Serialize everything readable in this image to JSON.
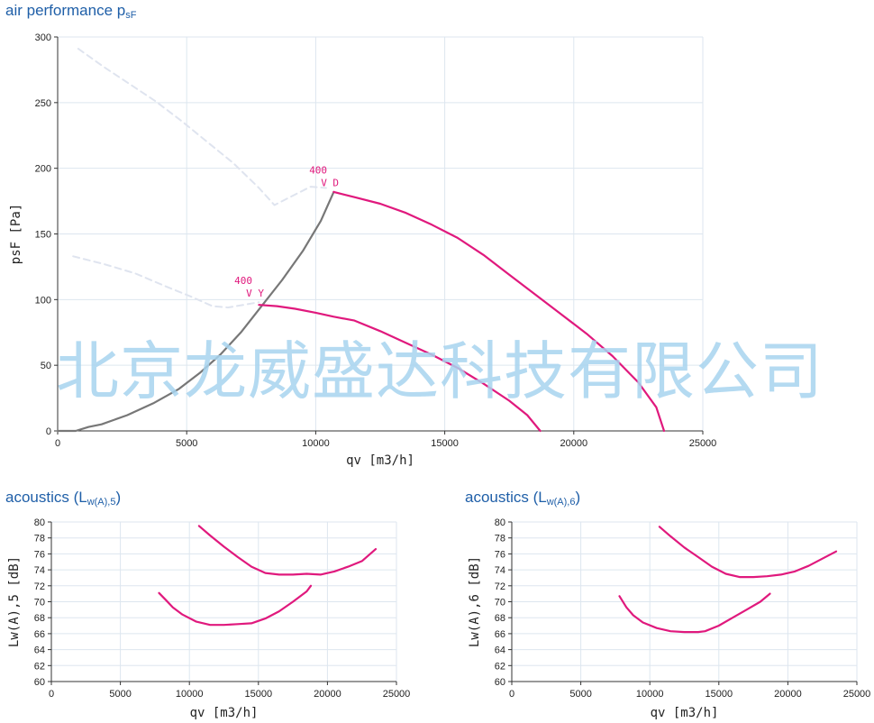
{
  "watermark": "北京龙威盛达科技有限公司",
  "titles": {
    "perf_main": "air performance p",
    "perf_sub": "sF",
    "ac5_main": "acoustics (L",
    "ac5_sub": "w(A),5",
    "ac5_close": ")",
    "ac6_main": "acoustics (L",
    "ac6_sub": "w(A),6",
    "ac6_close": ")"
  },
  "chart_data": [
    {
      "id": "perf",
      "type": "line",
      "title": "air performance psF",
      "xlabel": "qv [m3/h]",
      "ylabel": "psF [Pa]",
      "xlim": [
        0,
        25000
      ],
      "ylim": [
        0,
        300
      ],
      "xticks": [
        "0",
        "5000",
        "10000",
        "15000",
        "20000",
        "25000"
      ],
      "yticks": [
        "0",
        "50",
        "100",
        "150",
        "200",
        "250",
        "300"
      ],
      "grid": true,
      "colors": {
        "curve": "#e0197d",
        "system": "#777777",
        "stall": "#dfe4ef",
        "grid": "#dde6ef"
      },
      "series": [
        {
          "role": "system",
          "x": [
            0,
            700,
            1200,
            1700,
            2700,
            3700,
            4700,
            5500,
            6300,
            7100,
            7900,
            8700,
            9500,
            10200,
            10700
          ],
          "y": [
            0,
            0,
            3,
            5,
            12,
            21,
            32,
            44,
            58,
            75,
            95,
            115,
            137,
            160,
            182
          ]
        },
        {
          "role": "curve",
          "x": [
            10700,
            11500,
            12500,
            13500,
            14500,
            15500,
            16500,
            17500,
            18500,
            19500,
            20500,
            21500,
            22500,
            23200,
            23500
          ],
          "y": [
            182,
            178,
            173,
            166,
            157,
            147,
            134,
            119,
            104,
            89,
            74,
            57,
            37,
            18,
            0
          ]
        },
        {
          "role": "curve",
          "x": [
            7800,
            8500,
            9200,
            10000,
            10700,
            11500,
            12500,
            13500,
            14500,
            15500,
            16500,
            17500,
            18200,
            18700
          ],
          "y": [
            96,
            95,
            93,
            90,
            87,
            84,
            76,
            67,
            58,
            48,
            36,
            23,
            12,
            0
          ]
        },
        {
          "role": "stall",
          "x": [
            800,
            1800,
            2800,
            3800,
            4800,
            5800,
            6800,
            7800,
            8400,
            9000,
            9800,
            10400
          ],
          "y": [
            291,
            277,
            264,
            251,
            236,
            220,
            204,
            185,
            172,
            178,
            186,
            185
          ]
        },
        {
          "role": "stall",
          "x": [
            600,
            1800,
            3000,
            4200,
            5200,
            6000,
            6600,
            7200,
            7800
          ],
          "y": [
            133,
            127,
            120,
            110,
            102,
            95,
            94,
            96,
            98
          ]
        }
      ],
      "annotations": [
        {
          "x": 10200,
          "y": 196,
          "lines": [
            "400",
            "V D"
          ]
        },
        {
          "x": 7300,
          "y": 112,
          "lines": [
            "400",
            "V Y"
          ]
        }
      ]
    },
    {
      "id": "ac5",
      "type": "line",
      "title": "acoustics (Lw(A),5)",
      "xlabel": "qv [m3/h]",
      "ylabel": "Lw(A),5 [dB]",
      "xlim": [
        0,
        25000
      ],
      "ylim": [
        60,
        80
      ],
      "xticks": [
        "0",
        "5000",
        "10000",
        "15000",
        "20000",
        "25000"
      ],
      "yticks": [
        "60",
        "62",
        "64",
        "66",
        "68",
        "70",
        "72",
        "74",
        "76",
        "78",
        "80"
      ],
      "grid": true,
      "series": [
        {
          "x": [
            10700,
            11500,
            12500,
            13500,
            14500,
            15500,
            16500,
            17500,
            18500,
            19500,
            20500,
            21500,
            22500,
            23500
          ],
          "y": [
            79.5,
            78.3,
            76.9,
            75.6,
            74.4,
            73.6,
            73.4,
            73.4,
            73.5,
            73.4,
            73.8,
            74.4,
            75.1,
            76.6
          ]
        },
        {
          "x": [
            7800,
            8300,
            8800,
            9500,
            10500,
            11500,
            12500,
            13500,
            14500,
            15500,
            16500,
            17500,
            18500,
            18800
          ],
          "y": [
            71.1,
            70.2,
            69.3,
            68.4,
            67.5,
            67.1,
            67.1,
            67.2,
            67.3,
            67.9,
            68.8,
            70.0,
            71.3,
            72.0
          ]
        }
      ]
    },
    {
      "id": "ac6",
      "type": "line",
      "title": "acoustics (Lw(A),6)",
      "xlabel": "qv [m3/h]",
      "ylabel": "Lw(A),6 [dB]",
      "xlim": [
        0,
        25000
      ],
      "ylim": [
        60,
        80
      ],
      "xticks": [
        "0",
        "5000",
        "10000",
        "15000",
        "20000",
        "25000"
      ],
      "yticks": [
        "60",
        "62",
        "64",
        "66",
        "68",
        "70",
        "72",
        "74",
        "76",
        "78",
        "80"
      ],
      "grid": true,
      "series": [
        {
          "x": [
            10700,
            11500,
            12500,
            13500,
            14500,
            15500,
            16500,
            17500,
            18500,
            19500,
            20500,
            21500,
            22500,
            23500
          ],
          "y": [
            79.4,
            78.2,
            76.8,
            75.6,
            74.4,
            73.5,
            73.1,
            73.1,
            73.2,
            73.4,
            73.8,
            74.5,
            75.4,
            76.3
          ]
        },
        {
          "x": [
            7800,
            8300,
            8800,
            9500,
            10500,
            11500,
            12500,
            13500,
            14000,
            15000,
            16000,
            17000,
            18000,
            18700
          ],
          "y": [
            70.7,
            69.3,
            68.3,
            67.4,
            66.7,
            66.3,
            66.2,
            66.2,
            66.3,
            67.0,
            68.0,
            69.0,
            70.0,
            71.0
          ]
        }
      ]
    }
  ]
}
